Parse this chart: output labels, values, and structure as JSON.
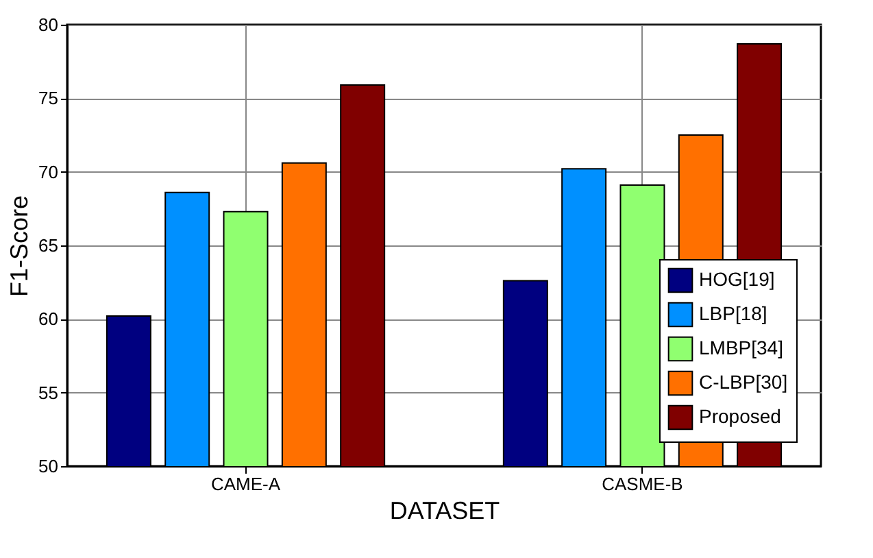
{
  "chart_data": {
    "type": "bar",
    "xlabel": "DATASET",
    "ylabel": "F1-Score",
    "categories": [
      "CAME-A",
      "CASME-B"
    ],
    "series": [
      {
        "name": "HOG[19]",
        "color": "#000080",
        "values": [
          60.2,
          62.6
        ]
      },
      {
        "name": "LBP[18]",
        "color": "#0090ff",
        "values": [
          68.6,
          70.2
        ]
      },
      {
        "name": "LMBP[34]",
        "color": "#90ff70",
        "values": [
          67.3,
          69.1
        ]
      },
      {
        "name": "C-LBP[30]",
        "color": "#ff7000",
        "values": [
          70.6,
          72.5
        ]
      },
      {
        "name": "Proposed",
        "color": "#800000",
        "values": [
          75.9,
          78.7
        ]
      }
    ],
    "ylim": [
      50,
      80
    ],
    "yticks": [
      50,
      55,
      60,
      65,
      70,
      75,
      80
    ],
    "grid": true,
    "legend": "bottom right"
  }
}
